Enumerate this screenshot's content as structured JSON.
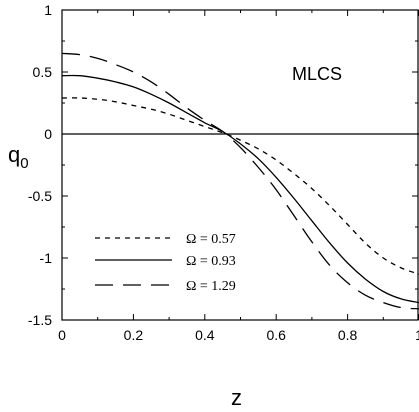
{
  "chart_data": {
    "type": "line",
    "xlabel": "z",
    "ylabel": "q0",
    "ylabel_main": "q",
    "ylabel_sub": "0",
    "xlim": [
      0,
      1
    ],
    "ylim": [
      -1.5,
      1
    ],
    "x_ticks": [
      0,
      0.2,
      0.4,
      0.6,
      0.8,
      1
    ],
    "x_tick_labels": [
      "0",
      "0.2",
      "0.4",
      "0.6",
      "0.8",
      "1"
    ],
    "y_ticks": [
      -1.5,
      -1,
      -0.5,
      0,
      0.5,
      1
    ],
    "y_tick_labels": [
      "-1.5",
      "-1",
      "-0.5",
      "0",
      "0.5",
      "1"
    ],
    "annotation": "MLCS",
    "reference_line_y": 0,
    "grid": false,
    "legend_position": "lower-left",
    "series": [
      {
        "name": "Ω = 0.57",
        "style": "short-dash",
        "x": [
          0,
          0.05,
          0.1,
          0.15,
          0.2,
          0.25,
          0.3,
          0.35,
          0.4,
          0.45,
          0.5,
          0.55,
          0.6,
          0.65,
          0.7,
          0.75,
          0.8,
          0.85,
          0.9,
          0.95,
          1.0
        ],
        "y": [
          0.29,
          0.29,
          0.28,
          0.26,
          0.23,
          0.2,
          0.16,
          0.11,
          0.06,
          0.01,
          -0.05,
          -0.12,
          -0.21,
          -0.32,
          -0.44,
          -0.58,
          -0.73,
          -0.88,
          -1.0,
          -1.08,
          -1.13
        ]
      },
      {
        "name": "Ω = 0.93",
        "style": "solid",
        "x": [
          0,
          0.05,
          0.1,
          0.15,
          0.2,
          0.25,
          0.3,
          0.35,
          0.4,
          0.45,
          0.5,
          0.55,
          0.6,
          0.65,
          0.7,
          0.75,
          0.8,
          0.85,
          0.9,
          0.95,
          1.0
        ],
        "y": [
          0.47,
          0.47,
          0.45,
          0.42,
          0.38,
          0.32,
          0.25,
          0.17,
          0.09,
          0.02,
          -0.08,
          -0.2,
          -0.35,
          -0.52,
          -0.7,
          -0.88,
          -1.04,
          -1.17,
          -1.27,
          -1.33,
          -1.36
        ]
      },
      {
        "name": "Ω = 1.29",
        "style": "long-dash",
        "x": [
          0,
          0.05,
          0.1,
          0.15,
          0.2,
          0.25,
          0.3,
          0.35,
          0.4,
          0.45,
          0.5,
          0.55,
          0.6,
          0.65,
          0.7,
          0.75,
          0.8,
          0.85,
          0.9,
          0.95,
          1.0
        ],
        "y": [
          0.65,
          0.64,
          0.61,
          0.56,
          0.5,
          0.42,
          0.32,
          0.21,
          0.11,
          0.02,
          -0.11,
          -0.27,
          -0.45,
          -0.66,
          -0.87,
          -1.06,
          -1.2,
          -1.3,
          -1.36,
          -1.4,
          -1.41
        ]
      }
    ]
  }
}
